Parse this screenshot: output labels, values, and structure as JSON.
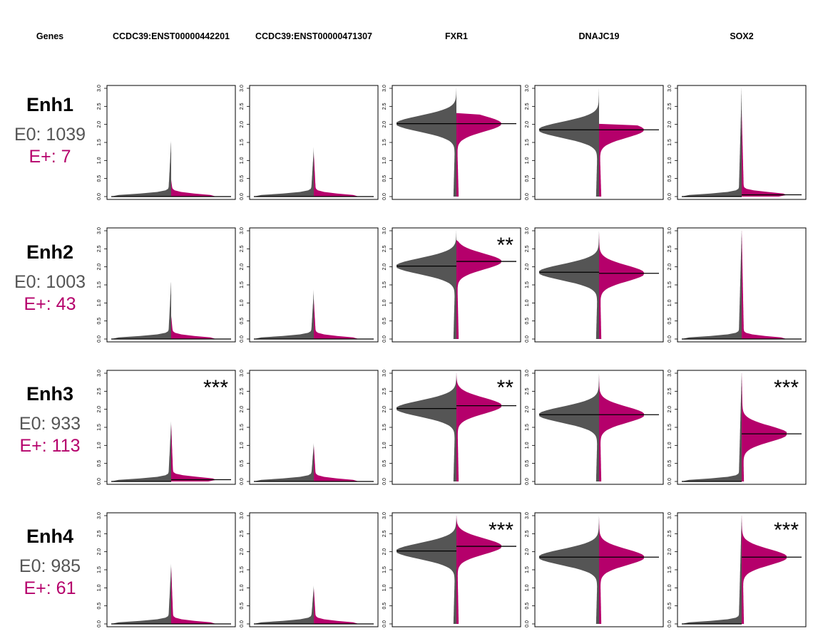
{
  "header": {
    "genes_label": "Genes",
    "columns": [
      "CCDC39:ENST00000442201",
      "CCDC39:ENST00000471307",
      "FXR1",
      "DNAJC19",
      "SOX2"
    ]
  },
  "colors": {
    "E0": "#555555",
    "E+": "#B5006B",
    "median_line": "#000000"
  },
  "rows": [
    {
      "label": "Enh1",
      "e0_text": "E0: 1039",
      "ep_text": "E+: 7"
    },
    {
      "label": "Enh2",
      "e0_text": "E0: 1003",
      "ep_text": "E+: 43"
    },
    {
      "label": "Enh3",
      "e0_text": "E0: 933",
      "ep_text": "E+: 113"
    },
    {
      "label": "Enh4",
      "e0_text": "E0: 985",
      "ep_text": "E+: 61"
    }
  ],
  "chart_data": {
    "type": "split_violin",
    "y_range": [
      0,
      3
    ],
    "y_ticks": [
      "0.0",
      "0.5",
      "1.0",
      "1.5",
      "2.0",
      "2.5",
      "3.0"
    ],
    "groups": [
      "E0",
      "E+"
    ],
    "panels": [
      [
        {
          "gene": "CCDC39:ENST00000442201",
          "median_E0": 0.0,
          "median_Ep": 0.0,
          "max_E0": 1.55,
          "max_Ep": 0.45,
          "signif": ""
        },
        {
          "gene": "CCDC39:ENST00000471307",
          "median_E0": 0.0,
          "median_Ep": 0.0,
          "max_E0": 1.35,
          "max_Ep": 1.2,
          "signif": ""
        },
        {
          "gene": "FXR1",
          "median_E0": 2.02,
          "median_Ep": 2.02,
          "max_E0": 3.05,
          "max_Ep": 2.3,
          "signif": ""
        },
        {
          "gene": "DNAJC19",
          "median_E0": 1.85,
          "median_Ep": 1.85,
          "max_E0": 3.0,
          "max_Ep": 2.0,
          "signif": ""
        },
        {
          "gene": "SOX2",
          "median_E0": 0.0,
          "median_Ep": 0.05,
          "max_E0": 3.05,
          "max_Ep": 2.4,
          "signif": ""
        }
      ],
      [
        {
          "gene": "CCDC39:ENST00000442201",
          "median_E0": 0.0,
          "median_Ep": 0.0,
          "max_E0": 1.6,
          "max_Ep": 0.65,
          "signif": ""
        },
        {
          "gene": "CCDC39:ENST00000471307",
          "median_E0": 0.0,
          "median_Ep": 0.0,
          "max_E0": 1.35,
          "max_Ep": 1.1,
          "signif": ""
        },
        {
          "gene": "FXR1",
          "median_E0": 2.02,
          "median_Ep": 2.15,
          "max_E0": 3.05,
          "max_Ep": 2.7,
          "signif": "**"
        },
        {
          "gene": "DNAJC19",
          "median_E0": 1.85,
          "median_Ep": 1.82,
          "max_E0": 3.0,
          "max_Ep": 3.0,
          "signif": ""
        },
        {
          "gene": "SOX2",
          "median_E0": 0.0,
          "median_Ep": 0.0,
          "max_E0": 3.05,
          "max_Ep": 3.05,
          "signif": ""
        }
      ],
      [
        {
          "gene": "CCDC39:ENST00000442201",
          "median_E0": 0.0,
          "median_Ep": 0.05,
          "max_E0": 1.65,
          "max_Ep": 1.6,
          "signif": "***"
        },
        {
          "gene": "CCDC39:ENST00000471307",
          "median_E0": 0.0,
          "median_Ep": 0.0,
          "max_E0": 1.05,
          "max_Ep": 1.0,
          "signif": ""
        },
        {
          "gene": "FXR1",
          "median_E0": 2.02,
          "median_Ep": 2.1,
          "max_E0": 3.05,
          "max_Ep": 3.05,
          "signif": "**"
        },
        {
          "gene": "DNAJC19",
          "median_E0": 1.85,
          "median_Ep": 1.85,
          "max_E0": 3.0,
          "max_Ep": 3.0,
          "signif": ""
        },
        {
          "gene": "SOX2",
          "median_E0": 0.0,
          "median_Ep": 1.32,
          "max_E0": 3.05,
          "max_Ep": 3.05,
          "signif": "***"
        }
      ],
      [
        {
          "gene": "CCDC39:ENST00000442201",
          "median_E0": 0.0,
          "median_Ep": 0.0,
          "max_E0": 1.65,
          "max_Ep": 1.6,
          "signif": ""
        },
        {
          "gene": "CCDC39:ENST00000471307",
          "median_E0": 0.0,
          "median_Ep": 0.0,
          "max_E0": 1.05,
          "max_Ep": 1.0,
          "signif": ""
        },
        {
          "gene": "FXR1",
          "median_E0": 2.02,
          "median_Ep": 2.15,
          "max_E0": 3.05,
          "max_Ep": 3.05,
          "signif": "***"
        },
        {
          "gene": "DNAJC19",
          "median_E0": 1.85,
          "median_Ep": 1.85,
          "max_E0": 3.0,
          "max_Ep": 3.0,
          "signif": ""
        },
        {
          "gene": "SOX2",
          "median_E0": 0.0,
          "median_Ep": 1.85,
          "max_E0": 3.05,
          "max_Ep": 3.05,
          "signif": "***"
        }
      ]
    ]
  }
}
